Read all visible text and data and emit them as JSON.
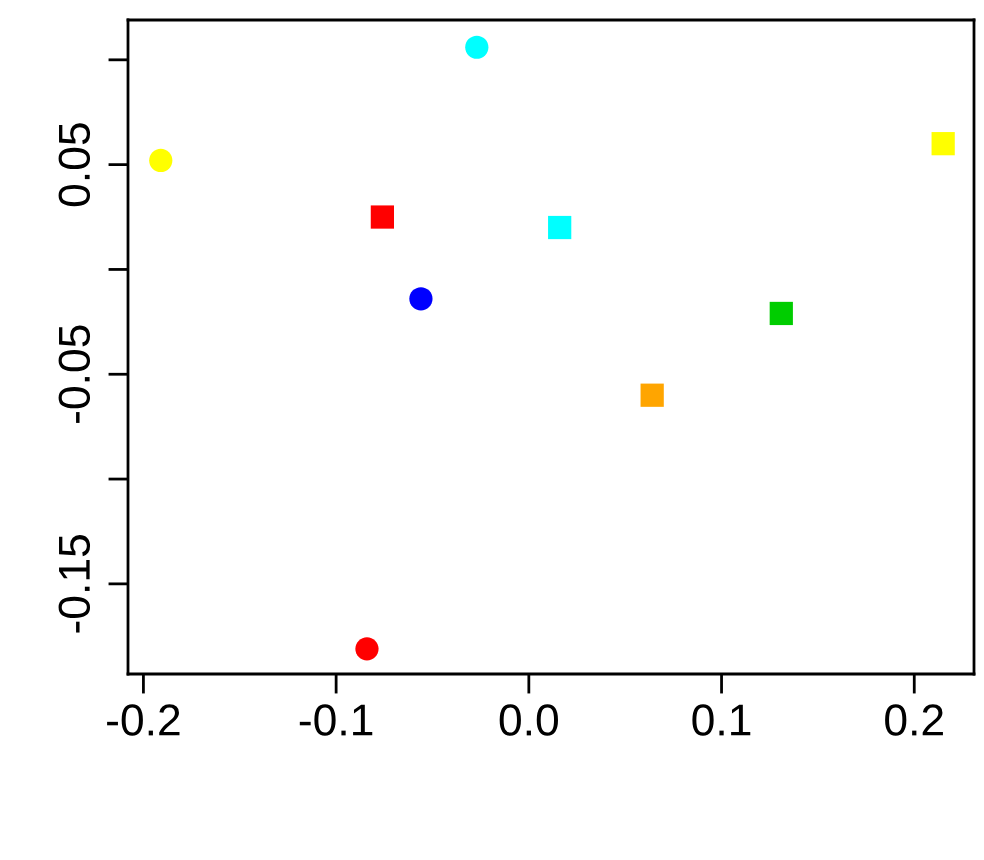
{
  "chart_data": {
    "type": "scatter",
    "series": [
      {
        "marker": "circle",
        "x": [
          -0.191,
          -0.027,
          -0.056,
          -0.084
        ],
        "values": [
          0.052,
          0.106,
          -0.014,
          -0.181
        ],
        "colors": [
          "#ffff00",
          "#00ffff",
          "#0000ff",
          "#ff0000"
        ]
      },
      {
        "marker": "square",
        "x": [
          -0.076,
          0.016,
          0.131,
          0.064,
          0.215
        ],
        "values": [
          0.025,
          0.02,
          -0.021,
          -0.06,
          0.06
        ],
        "colors": [
          "#ff0000",
          "#00ffff",
          "#00cd00",
          "#ffa500",
          "#ffff00"
        ]
      }
    ],
    "xlim": [
      -0.208,
      0.231
    ],
    "ylim": [
      -0.193,
      0.119
    ],
    "xticks": [
      -0.2,
      -0.1,
      {
        "value": 0,
        "label": "0.0"
      },
      0.1,
      0.2
    ],
    "yticks": [
      {
        "value": 0.1,
        "label": null
      },
      0.05,
      {
        "value": 0.0,
        "label": null
      },
      -0.05,
      {
        "value": -0.1,
        "label": null
      },
      -0.15
    ],
    "grid": false,
    "legend": false
  }
}
